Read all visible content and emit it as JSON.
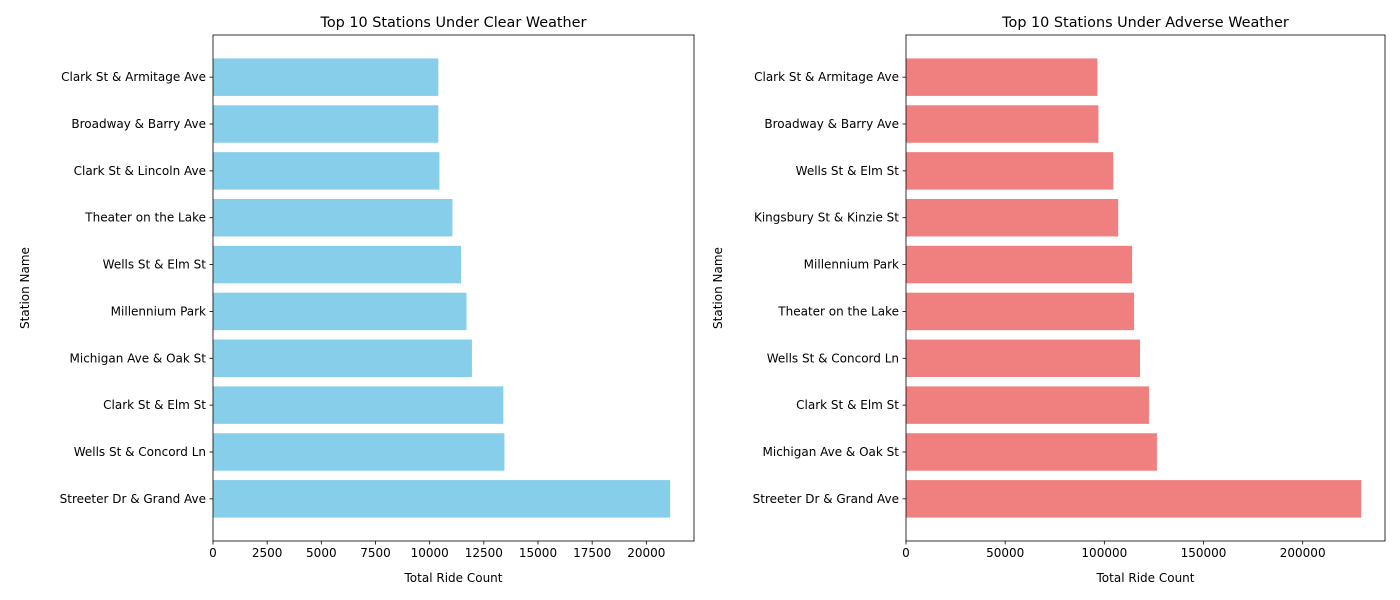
{
  "chart_data": [
    {
      "type": "bar",
      "orientation": "horizontal",
      "title": "Top 10 Stations Under Clear Weather",
      "xlabel": "Total Ride Count",
      "ylabel": "Station Name",
      "categories": [
        "Streeter Dr & Grand Ave",
        "Wells St & Concord Ln",
        "Clark St & Elm St",
        "Michigan Ave & Oak St",
        "Millennium Park",
        "Wells St & Elm St",
        "Theater on the Lake",
        "Clark St & Lincoln Ave",
        "Broadway & Barry Ave",
        "Clark St & Armitage Ave"
      ],
      "values": [
        21100,
        13450,
        13400,
        11950,
        11700,
        11450,
        11050,
        10450,
        10400,
        10400
      ],
      "xlim": [
        0,
        22200
      ],
      "xticks": [
        0,
        2500,
        5000,
        7500,
        10000,
        12500,
        15000,
        17500,
        20000
      ],
      "xtick_labels": [
        "0",
        "2500",
        "5000",
        "7500",
        "10000",
        "12500",
        "15000",
        "17500",
        "20000"
      ],
      "bar_color": "#87ceeb",
      "grid": false
    },
    {
      "type": "bar",
      "orientation": "horizontal",
      "title": "Top 10 Stations Under Adverse Weather",
      "xlabel": "Total Ride Count",
      "ylabel": "Station Name",
      "categories": [
        "Streeter Dr & Grand Ave",
        "Michigan Ave & Oak St",
        "Clark St & Elm St",
        "Wells St & Concord Ln",
        "Theater on the Lake",
        "Millennium Park",
        "Kingsbury St & Kinzie St",
        "Wells St & Elm St",
        "Broadway & Barry Ave",
        "Clark St & Armitage Ave"
      ],
      "values": [
        229500,
        126500,
        122500,
        118000,
        115000,
        114000,
        107000,
        104500,
        97000,
        96500
      ],
      "xlim": [
        0,
        241500
      ],
      "xticks": [
        0,
        50000,
        100000,
        150000,
        200000
      ],
      "xtick_labels": [
        "0",
        "50000",
        "100000",
        "150000",
        "200000"
      ],
      "bar_color": "#f08080",
      "grid": false
    }
  ]
}
